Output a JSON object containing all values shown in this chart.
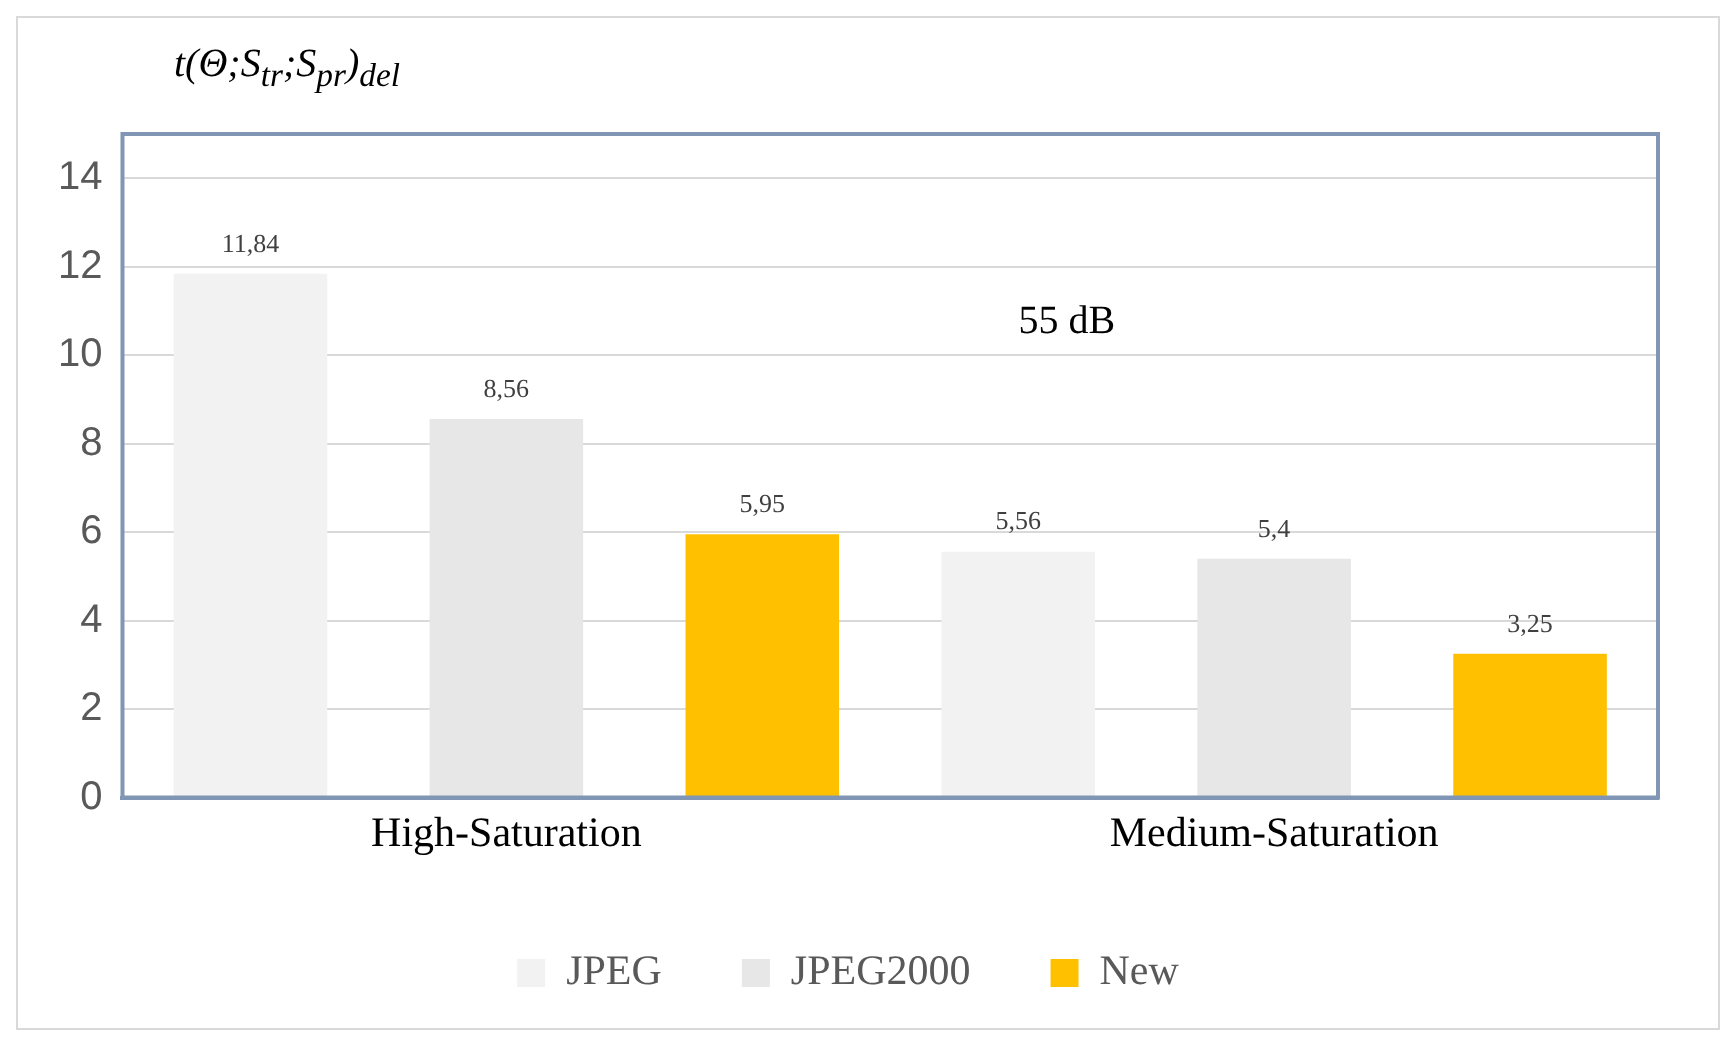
{
  "chart_data": {
    "type": "bar",
    "ylabel": "t(Θ;S$_{tr}$;S$_{pr}$)$_{del}$",
    "categories": [
      "High-Saturation",
      "Medium-Saturation"
    ],
    "series": [
      {
        "name": "JPEG",
        "color": "#f2f2f2",
        "values": [
          11.84,
          5.56
        ],
        "value_labels": [
          "11,84",
          "5,56"
        ]
      },
      {
        "name": "JPEG2000",
        "color": "#e7e7e7",
        "values": [
          8.56,
          5.4
        ],
        "value_labels": [
          "8,56",
          "5,4"
        ]
      },
      {
        "name": "New",
        "color": "#ffc000",
        "values": [
          5.95,
          3.25
        ],
        "value_labels": [
          "5,95",
          "3,25"
        ]
      }
    ],
    "ylim": [
      0,
      15
    ],
    "yticks": [
      0,
      2,
      4,
      6,
      8,
      10,
      12,
      14
    ],
    "grid": "y",
    "legend": "bottom",
    "annotations": [
      "55 dB"
    ]
  }
}
